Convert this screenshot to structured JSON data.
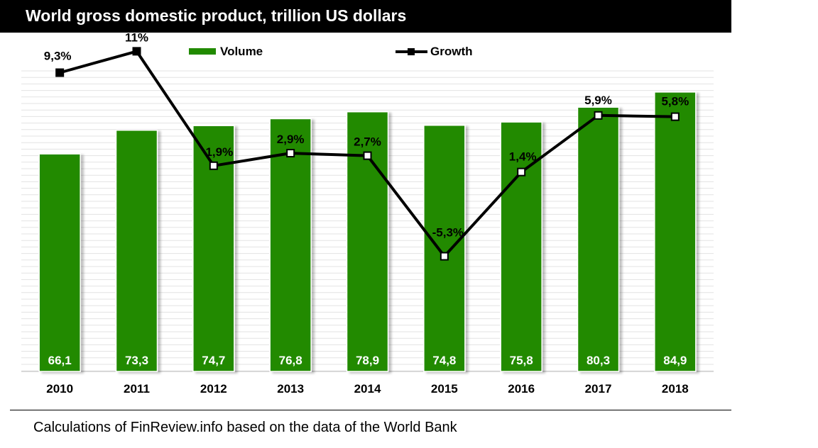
{
  "chart_data": {
    "type": "bar",
    "title": "World gross domestic product, trillion US dollars",
    "categories": [
      "2010",
      "2011",
      "2012",
      "2013",
      "2014",
      "2015",
      "2016",
      "2017",
      "2018"
    ],
    "series": [
      {
        "name": "Volume",
        "type": "bar",
        "color": "#218a00",
        "values": [
          66.1,
          73.3,
          74.7,
          76.8,
          78.9,
          74.8,
          75.8,
          80.3,
          84.9
        ],
        "labels": [
          "66,1",
          "73,3",
          "74,7",
          "76,8",
          "78,9",
          "74,8",
          "75,8",
          "80,3",
          "84,9"
        ]
      },
      {
        "name": "Growth",
        "type": "line",
        "color": "#000000",
        "values": [
          9.3,
          11,
          1.9,
          2.9,
          2.7,
          -5.3,
          1.4,
          5.9,
          5.8
        ],
        "labels": [
          "9,3%",
          "11%",
          "1,9%",
          "2,9%",
          "2,7%",
          "-5,3%",
          "1,4%",
          "5,9%",
          "5,8%"
        ]
      }
    ],
    "legend_position": "top-center",
    "grid": true
  },
  "source_note": "Calculations of FinReview.info based on the data of the World Bank"
}
